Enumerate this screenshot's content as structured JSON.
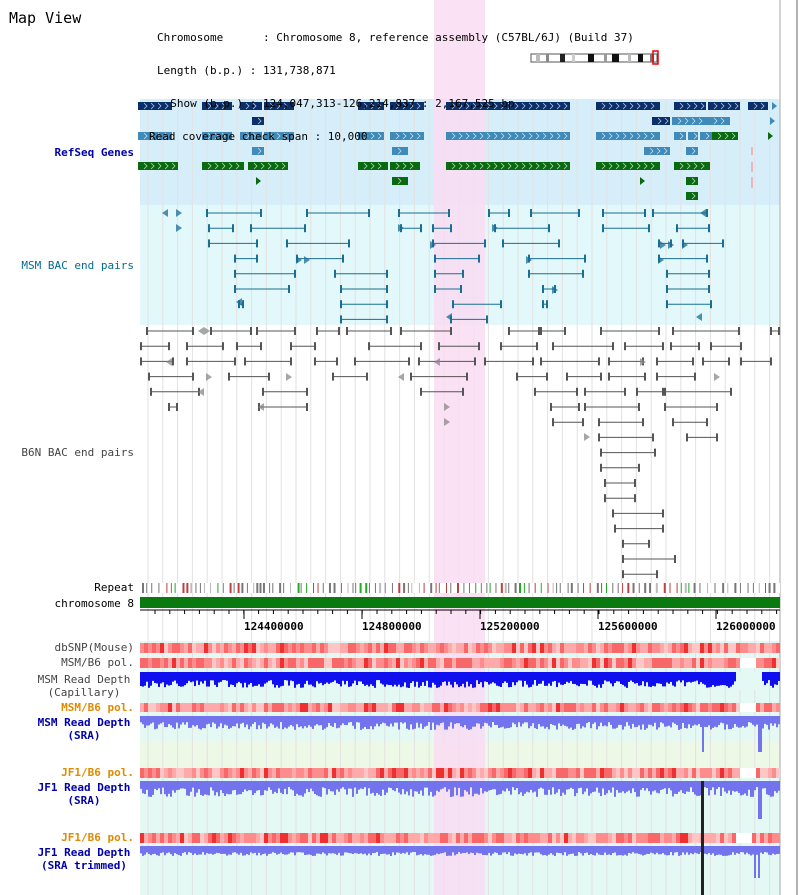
{
  "header": {
    "title": "Map View",
    "chromosome_label": "Chromosome      : Chromosome 8, reference assembly (C57BL/6J) (Build 37)",
    "length_label": "Length (b.p.) : 131,738,871",
    "show_label": "  Show (b.p.) : 124,047,313-126,214,837 : 2,167,525 bp",
    "coverage_label": "Read coverage check span : 10,000"
  },
  "tracks": {
    "refseq": "RefSeq Genes",
    "msm_bac": "MSM BAC end pairs",
    "b6n_bac": "B6N BAC end pairs",
    "repeat": "Repeat",
    "chromosome": "chromosome 8",
    "dbsnp": "dbSNP(Mouse)",
    "msm_b6_pol": "MSM/B6 pol.",
    "msm_depth_cap_1": "MSM Read Depth",
    "msm_depth_cap_2": "(Capillary)",
    "msm_b6_pol_2": "MSM/B6 pol.",
    "msm_depth_sra_1": "MSM Read Depth",
    "msm_depth_sra_2": "(SRA)",
    "jf1_b6_pol": "JF1/B6 pol.",
    "jf1_depth_sra_1": "JF1 Read Depth",
    "jf1_depth_sra_2": "(SRA)",
    "jf1_b6_pol_2": "JF1/B6 pol.",
    "jf1_depth_trim_1": "JF1 Read Depth",
    "jf1_depth_trim_2": "(SRA trimmed)"
  },
  "axis": {
    "ticks": [
      "124400000",
      "124800000",
      "125200000",
      "125600000",
      "126000000"
    ]
  },
  "colors": {
    "refseq_bg": "#d6eefa",
    "msm_bac_bg": "#e2f8fa",
    "highlight": "#f9dcf2",
    "gene_dark": "#0a2f6b",
    "gene_mid": "#3f8ab8",
    "gene_green": "#0a6a10",
    "bac_msm": "#1a6e94",
    "bac_b6n": "#555555",
    "chromosome_bar": "#0a7a10",
    "depth_blue": "#1010ee",
    "depth_light": "#7373ee",
    "label_blue": "#0000aa",
    "label_teal": "#006a90",
    "label_orange": "#e08a00",
    "label_gray": "#444444"
  }
}
